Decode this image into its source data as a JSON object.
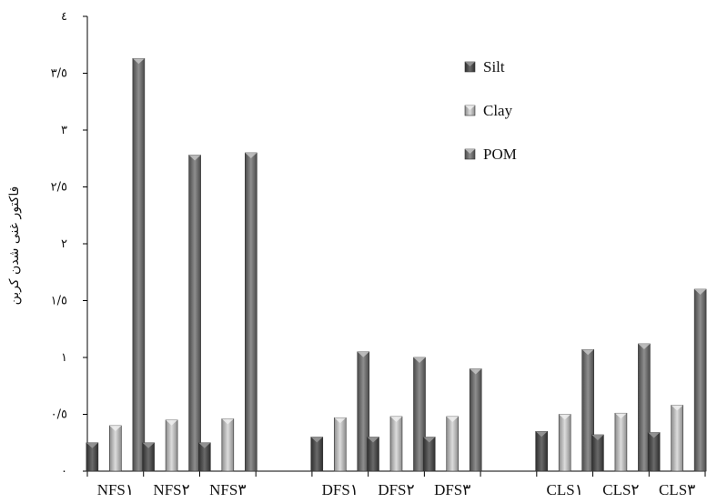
{
  "chart_data": {
    "type": "bar",
    "categories": [
      "NFS١",
      "NFS٢",
      "NFS٣",
      "",
      "DFS١",
      "DFS٢",
      "DFS٣",
      "",
      "CLS١",
      "CLS٢",
      "CLS٣"
    ],
    "series": [
      {
        "name": "Silt",
        "values": [
          0.25,
          0.25,
          0.25,
          null,
          0.3,
          0.3,
          0.3,
          null,
          0.35,
          0.32,
          0.34
        ],
        "color": "#4a4a4a"
      },
      {
        "name": "Clay",
        "values": [
          0.4,
          0.45,
          0.46,
          null,
          0.47,
          0.48,
          0.48,
          null,
          0.5,
          0.51,
          0.58
        ],
        "color": "#b5b5b5"
      },
      {
        "name": "POM",
        "values": [
          3.63,
          2.78,
          2.8,
          null,
          1.05,
          1.0,
          0.9,
          null,
          1.07,
          1.12,
          1.6
        ],
        "color": "#6a6a6a"
      }
    ],
    "ylabel": "فاکتور غنی شدن کربن",
    "ylim": [
      0,
      4
    ],
    "yticks": [
      0,
      0.5,
      1,
      1.5,
      2,
      2.5,
      3,
      3.5,
      4
    ],
    "ytick_labels": [
      "٠",
      "٠/٥",
      "١",
      "١/٥",
      "٢",
      "٢/٥",
      "٣",
      "٣/٥",
      "٤"
    ],
    "legend_position": "top-right",
    "grid": false
  }
}
